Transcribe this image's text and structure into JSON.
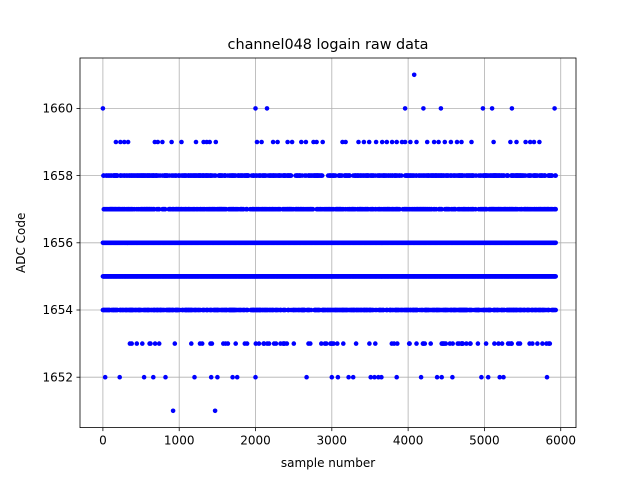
{
  "chart_data": {
    "type": "scatter",
    "title": "channel048 logain raw data",
    "xlabel": "sample number",
    "ylabel": "ADC Code",
    "xlim": [
      -300,
      6200
    ],
    "ylim": [
      1650.5,
      1661.5
    ],
    "x_ticks": [
      0,
      1000,
      2000,
      3000,
      4000,
      5000,
      6000
    ],
    "y_ticks": [
      1652,
      1654,
      1656,
      1658,
      1660
    ],
    "grid": true,
    "marker_color": "#0000ff",
    "n_samples": 5940,
    "level_density": {
      "1651": 0.0003,
      "1652": 0.005,
      "1653": 0.09,
      "1654": 0.6,
      "1655": 1.0,
      "1656": 1.0,
      "1657": 0.55,
      "1658": 0.5,
      "1659": 0.035,
      "1660": 0.003,
      "1661": 0.0002
    },
    "series": [
      {
        "marker": "o",
        "rare_points": [
          [
            0,
            1660
          ],
          [
            2000,
            1660
          ],
          [
            2150,
            1660
          ],
          [
            3960,
            1660
          ],
          [
            4200,
            1660
          ],
          [
            4430,
            1660
          ],
          [
            4980,
            1660
          ],
          [
            5100,
            1660
          ],
          [
            5360,
            1660
          ],
          [
            5920,
            1660
          ],
          [
            4080,
            1661
          ],
          [
            920,
            1651
          ],
          [
            1470,
            1651
          ],
          [
            30,
            1652
          ],
          [
            220,
            1652
          ],
          [
            540,
            1652
          ],
          [
            660,
            1652
          ],
          [
            820,
            1652
          ],
          [
            1200,
            1652
          ],
          [
            1420,
            1652
          ],
          [
            1500,
            1652
          ],
          [
            1700,
            1652
          ],
          [
            1760,
            1652
          ],
          [
            2000,
            1652
          ],
          [
            2670,
            1652
          ],
          [
            3000,
            1652
          ],
          [
            3080,
            1652
          ],
          [
            3220,
            1652
          ],
          [
            3280,
            1652
          ],
          [
            3510,
            1652
          ],
          [
            3560,
            1652
          ],
          [
            3610,
            1652
          ],
          [
            3650,
            1652
          ],
          [
            3850,
            1652
          ],
          [
            4170,
            1652
          ],
          [
            4380,
            1652
          ],
          [
            4440,
            1652
          ],
          [
            4580,
            1652
          ],
          [
            4960,
            1652
          ],
          [
            5050,
            1652
          ],
          [
            5200,
            1652
          ],
          [
            5250,
            1652
          ],
          [
            5820,
            1652
          ],
          [
            170,
            1659
          ],
          [
            230,
            1659
          ],
          [
            280,
            1659
          ],
          [
            330,
            1659
          ],
          [
            680,
            1659
          ],
          [
            720,
            1659
          ],
          [
            780,
            1659
          ],
          [
            900,
            1659
          ],
          [
            1030,
            1659
          ],
          [
            1220,
            1659
          ],
          [
            1320,
            1659
          ],
          [
            1360,
            1659
          ],
          [
            1400,
            1659
          ],
          [
            1480,
            1659
          ],
          [
            2020,
            1659
          ],
          [
            2080,
            1659
          ],
          [
            2230,
            1659
          ],
          [
            2290,
            1659
          ],
          [
            2420,
            1659
          ],
          [
            2480,
            1659
          ],
          [
            2600,
            1659
          ],
          [
            2660,
            1659
          ],
          [
            2760,
            1659
          ],
          [
            2800,
            1659
          ],
          [
            2880,
            1659
          ],
          [
            3140,
            1659
          ],
          [
            3180,
            1659
          ],
          [
            3350,
            1659
          ],
          [
            3420,
            1659
          ],
          [
            3490,
            1659
          ],
          [
            3580,
            1659
          ],
          [
            3660,
            1659
          ],
          [
            3720,
            1659
          ],
          [
            3790,
            1659
          ],
          [
            3850,
            1659
          ],
          [
            3920,
            1659
          ],
          [
            3960,
            1659
          ],
          [
            4030,
            1659
          ],
          [
            4110,
            1659
          ],
          [
            4250,
            1659
          ],
          [
            4340,
            1659
          ],
          [
            4400,
            1659
          ],
          [
            4480,
            1659
          ],
          [
            4560,
            1659
          ],
          [
            4640,
            1659
          ],
          [
            4700,
            1659
          ],
          [
            4830,
            1659
          ],
          [
            5120,
            1659
          ],
          [
            5340,
            1659
          ],
          [
            5420,
            1659
          ],
          [
            5540,
            1659
          ],
          [
            5600,
            1659
          ],
          [
            5650,
            1659
          ],
          [
            5720,
            1659
          ]
        ]
      }
    ]
  }
}
